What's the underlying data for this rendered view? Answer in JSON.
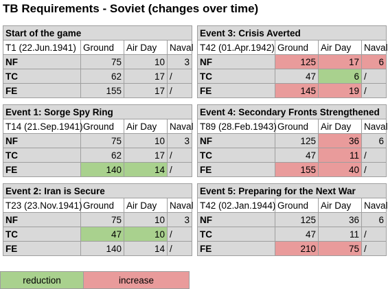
{
  "title": "TB Requirements - Soviet (changes over time)",
  "headers": {
    "ground": "Ground",
    "air": "Air Day",
    "naval": "Naval"
  },
  "colors": {
    "reduction": "#a9d18e",
    "increase": "#e99b9b",
    "base": "#d9d9d9"
  },
  "blocks": [
    {
      "title": "Start of the game",
      "date": "T1 (22.Jun.1941)",
      "rows": [
        {
          "label": "NF",
          "ground": "75",
          "air": "10",
          "naval": "3",
          "ground_change": "none",
          "air_change": "none",
          "naval_change": "none"
        },
        {
          "label": "TC",
          "ground": "62",
          "air": "17",
          "naval": "/",
          "ground_change": "none",
          "air_change": "none",
          "naval_change": "none"
        },
        {
          "label": "FE",
          "ground": "155",
          "air": "17",
          "naval": "/",
          "ground_change": "none",
          "air_change": "none",
          "naval_change": "none"
        }
      ]
    },
    {
      "title": "Event 1: Sorge Spy Ring",
      "date": "T14 (21.Sep.1941)",
      "rows": [
        {
          "label": "NF",
          "ground": "75",
          "air": "10",
          "naval": "3",
          "ground_change": "none",
          "air_change": "none",
          "naval_change": "none"
        },
        {
          "label": "TC",
          "ground": "62",
          "air": "17",
          "naval": "/",
          "ground_change": "none",
          "air_change": "none",
          "naval_change": "none"
        },
        {
          "label": "FE",
          "ground": "140",
          "air": "14",
          "naval": "/",
          "ground_change": "reduction",
          "air_change": "reduction",
          "naval_change": "none"
        }
      ]
    },
    {
      "title": "Event 2: Iran is Secure",
      "date": "T23 (23.Nov.1941)",
      "rows": [
        {
          "label": "NF",
          "ground": "75",
          "air": "10",
          "naval": "3",
          "ground_change": "none",
          "air_change": "none",
          "naval_change": "none"
        },
        {
          "label": "TC",
          "ground": "47",
          "air": "10",
          "naval": "/",
          "ground_change": "reduction",
          "air_change": "reduction",
          "naval_change": "none"
        },
        {
          "label": "FE",
          "ground": "140",
          "air": "14",
          "naval": "/",
          "ground_change": "none",
          "air_change": "none",
          "naval_change": "none"
        }
      ]
    },
    {
      "title": "Event 3: Crisis Averted",
      "date": "T42 (01.Apr.1942)",
      "rows": [
        {
          "label": "NF",
          "ground": "125",
          "air": "17",
          "naval": "6",
          "ground_change": "increase",
          "air_change": "increase",
          "naval_change": "increase"
        },
        {
          "label": "TC",
          "ground": "47",
          "air": "6",
          "naval": "/",
          "ground_change": "none",
          "air_change": "reduction",
          "naval_change": "none"
        },
        {
          "label": "FE",
          "ground": "145",
          "air": "19",
          "naval": "/",
          "ground_change": "increase",
          "air_change": "increase",
          "naval_change": "none"
        }
      ]
    },
    {
      "title": "Event 4: Secondary Fronts Strengthened",
      "date": "T89 (28.Feb.1943)",
      "rows": [
        {
          "label": "NF",
          "ground": "125",
          "air": "36",
          "naval": "6",
          "ground_change": "none",
          "air_change": "increase",
          "naval_change": "none"
        },
        {
          "label": "TC",
          "ground": "47",
          "air": "11",
          "naval": "/",
          "ground_change": "none",
          "air_change": "increase",
          "naval_change": "none"
        },
        {
          "label": "FE",
          "ground": "155",
          "air": "40",
          "naval": "/",
          "ground_change": "increase",
          "air_change": "increase",
          "naval_change": "none"
        }
      ]
    },
    {
      "title": "Event 5: Preparing for the Next War",
      "date": "T42 (02.Jan.1944)",
      "rows": [
        {
          "label": "NF",
          "ground": "125",
          "air": "36",
          "naval": "6",
          "ground_change": "none",
          "air_change": "none",
          "naval_change": "none"
        },
        {
          "label": "TC",
          "ground": "47",
          "air": "11",
          "naval": "/",
          "ground_change": "none",
          "air_change": "none",
          "naval_change": "none"
        },
        {
          "label": "FE",
          "ground": "210",
          "air": "75",
          "naval": "/",
          "ground_change": "increase",
          "air_change": "increase",
          "naval_change": "none"
        }
      ]
    }
  ],
  "legend": {
    "reduction": "reduction",
    "increase": "increase"
  }
}
